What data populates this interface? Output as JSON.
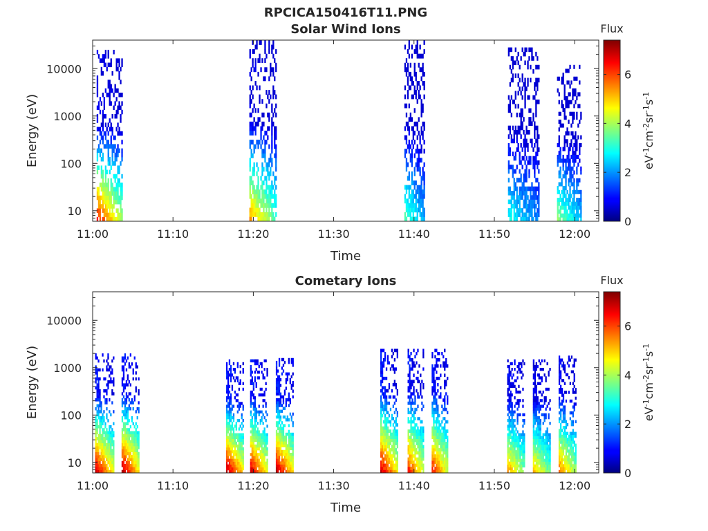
{
  "figure": {
    "title": "RPCICA150416T11.PNG"
  },
  "chart_data": [
    {
      "type": "heatmap",
      "title": "Solar Wind Ions",
      "xlabel": "Time",
      "ylabel": "Energy (eV)",
      "x_ticks": [
        "11:00",
        "11:10",
        "11:20",
        "11:30",
        "11:40",
        "11:50",
        "12:00"
      ],
      "x_range_minutes": [
        0,
        63
      ],
      "y_scale": "log",
      "y_ticks": [
        "10",
        "100",
        "1000",
        "10000"
      ],
      "y_range": [
        6,
        40000
      ],
      "colorbar": {
        "title": "Flux",
        "label": "eV-1cm-2sr-1s-1",
        "ticks": [
          "0",
          "2",
          "4",
          "6"
        ],
        "range": [
          0,
          7.4
        ],
        "colormap": "jet"
      },
      "bursts": [
        {
          "start_min": 0.5,
          "end_min": 3.6,
          "peak_flux": 6.5,
          "energy_max": 25000
        },
        {
          "start_min": 19.5,
          "end_min": 22.8,
          "peak_flux": 5.5,
          "energy_max": 40000
        },
        {
          "start_min": 38.8,
          "end_min": 41.2,
          "peak_flux": 3.5,
          "energy_max": 40000
        },
        {
          "start_min": 51.7,
          "end_min": 55.6,
          "peak_flux": 3.0,
          "energy_max": 28000
        },
        {
          "start_min": 57.8,
          "end_min": 60.8,
          "peak_flux": 3.8,
          "energy_max": 12000
        }
      ]
    },
    {
      "type": "heatmap",
      "title": "Cometary Ions",
      "xlabel": "Time",
      "ylabel": "Energy (eV)",
      "x_ticks": [
        "11:00",
        "11:10",
        "11:20",
        "11:30",
        "11:40",
        "11:50",
        "12:00"
      ],
      "x_range_minutes": [
        0,
        63
      ],
      "y_scale": "log",
      "y_ticks": [
        "10",
        "100",
        "1000",
        "10000"
      ],
      "y_range": [
        6,
        40000
      ],
      "colorbar": {
        "title": "Flux",
        "label": "eV-1cm-2sr-1s-1",
        "ticks": [
          "0",
          "2",
          "4",
          "6"
        ],
        "range": [
          0,
          7.4
        ],
        "colormap": "jet"
      },
      "bursts": [
        {
          "start_min": 0.3,
          "end_min": 2.6,
          "peak_flux": 7.0,
          "energy_max": 2000
        },
        {
          "start_min": 3.6,
          "end_min": 5.8,
          "peak_flux": 7.2,
          "energy_max": 2000
        },
        {
          "start_min": 16.6,
          "end_min": 18.8,
          "peak_flux": 7.2,
          "energy_max": 1500
        },
        {
          "start_min": 19.6,
          "end_min": 21.8,
          "peak_flux": 7.0,
          "energy_max": 1500
        },
        {
          "start_min": 22.8,
          "end_min": 25.0,
          "peak_flux": 7.2,
          "energy_max": 1600
        },
        {
          "start_min": 35.8,
          "end_min": 38.0,
          "peak_flux": 7.0,
          "energy_max": 2500
        },
        {
          "start_min": 39.2,
          "end_min": 41.2,
          "peak_flux": 6.5,
          "energy_max": 2500
        },
        {
          "start_min": 42.2,
          "end_min": 44.2,
          "peak_flux": 6.5,
          "energy_max": 2500
        },
        {
          "start_min": 51.6,
          "end_min": 53.8,
          "peak_flux": 5.5,
          "energy_max": 1500
        },
        {
          "start_min": 54.8,
          "end_min": 57.0,
          "peak_flux": 5.2,
          "energy_max": 1500
        },
        {
          "start_min": 58.0,
          "end_min": 60.2,
          "peak_flux": 5.8,
          "energy_max": 1800
        }
      ]
    }
  ]
}
